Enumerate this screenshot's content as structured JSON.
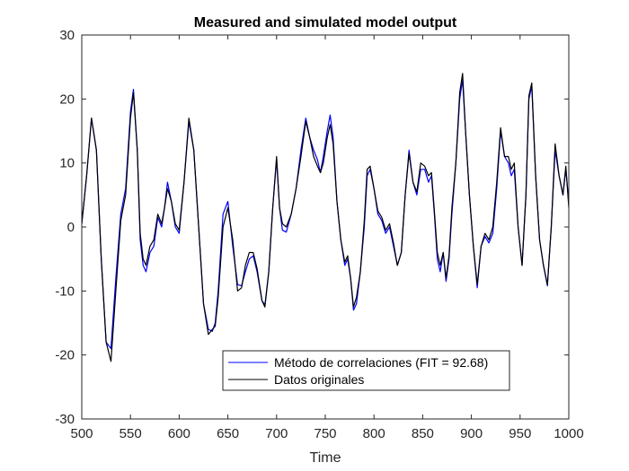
{
  "chart_data": {
    "type": "line",
    "title": "Measured and simulated model output",
    "xlabel": "Time",
    "ylabel": "",
    "xlim": [
      500,
      1000
    ],
    "ylim": [
      -30,
      30
    ],
    "xticks": [
      500,
      550,
      600,
      650,
      700,
      750,
      800,
      850,
      900,
      950,
      1000
    ],
    "yticks": [
      -30,
      -20,
      -10,
      0,
      10,
      20,
      30
    ],
    "grid": false,
    "legend_position": "bottom-center",
    "series": [
      {
        "name": "Método de correlaciones (FIT = 92.68)",
        "color": "#0000ff",
        "points": [
          [
            500,
            0.5
          ],
          [
            505,
            8
          ],
          [
            510,
            17
          ],
          [
            515,
            12
          ],
          [
            520,
            -5
          ],
          [
            525,
            -18
          ],
          [
            530,
            -19
          ],
          [
            535,
            -8
          ],
          [
            540,
            2
          ],
          [
            545,
            6
          ],
          [
            550,
            18
          ],
          [
            553,
            21.5
          ],
          [
            557,
            12
          ],
          [
            560,
            -2
          ],
          [
            563,
            -6
          ],
          [
            566,
            -7
          ],
          [
            570,
            -4
          ],
          [
            574,
            -3
          ],
          [
            578,
            1.5
          ],
          [
            582,
            0
          ],
          [
            585,
            3
          ],
          [
            588,
            7
          ],
          [
            592,
            4
          ],
          [
            596,
            0
          ],
          [
            600,
            -1
          ],
          [
            605,
            7
          ],
          [
            610,
            16.5
          ],
          [
            615,
            12
          ],
          [
            620,
            0
          ],
          [
            625,
            -12
          ],
          [
            630,
            -16
          ],
          [
            634,
            -16.3
          ],
          [
            637,
            -15
          ],
          [
            640,
            -10
          ],
          [
            645,
            2
          ],
          [
            650,
            4
          ],
          [
            655,
            -3
          ],
          [
            660,
            -9
          ],
          [
            664,
            -9.2
          ],
          [
            668,
            -7
          ],
          [
            672,
            -5
          ],
          [
            676,
            -4.5
          ],
          [
            680,
            -7
          ],
          [
            685,
            -11.5
          ],
          [
            688,
            -12.2
          ],
          [
            692,
            -7
          ],
          [
            696,
            3
          ],
          [
            700,
            10.5
          ],
          [
            703,
            3
          ],
          [
            706,
            -0.5
          ],
          [
            710,
            -0.8
          ],
          [
            715,
            2
          ],
          [
            720,
            6
          ],
          [
            725,
            12
          ],
          [
            730,
            17
          ],
          [
            734,
            14
          ],
          [
            738,
            12
          ],
          [
            742,
            10.5
          ],
          [
            745,
            8.5
          ],
          [
            748,
            11
          ],
          [
            752,
            15
          ],
          [
            755,
            17.5
          ],
          [
            758,
            14
          ],
          [
            762,
            4
          ],
          [
            766,
            -2
          ],
          [
            770,
            -6
          ],
          [
            773,
            -5
          ],
          [
            776,
            -8
          ],
          [
            779,
            -13
          ],
          [
            782,
            -12
          ],
          [
            786,
            -7
          ],
          [
            790,
            0
          ],
          [
            793,
            8
          ],
          [
            796,
            9
          ],
          [
            800,
            6
          ],
          [
            804,
            2
          ],
          [
            808,
            1
          ],
          [
            812,
            -1
          ],
          [
            816,
            0
          ],
          [
            820,
            -3
          ],
          [
            824,
            -6
          ],
          [
            828,
            -4
          ],
          [
            832,
            5
          ],
          [
            836,
            12
          ],
          [
            840,
            7
          ],
          [
            844,
            5
          ],
          [
            848,
            9
          ],
          [
            852,
            9
          ],
          [
            856,
            7
          ],
          [
            859,
            8
          ],
          [
            862,
            2
          ],
          [
            865,
            -5
          ],
          [
            868,
            -7
          ],
          [
            871,
            -4
          ],
          [
            874,
            -8.5
          ],
          [
            877,
            -5
          ],
          [
            880,
            2
          ],
          [
            884,
            10
          ],
          [
            888,
            20
          ],
          [
            891,
            23
          ],
          [
            894,
            15
          ],
          [
            898,
            5
          ],
          [
            902,
            -3
          ],
          [
            906,
            -9.5
          ],
          [
            910,
            -3
          ],
          [
            914,
            -1.5
          ],
          [
            918,
            -2.5
          ],
          [
            922,
            -1
          ],
          [
            926,
            6
          ],
          [
            930,
            15
          ],
          [
            934,
            11
          ],
          [
            938,
            10
          ],
          [
            941,
            8
          ],
          [
            944,
            9
          ],
          [
            948,
            0
          ],
          [
            952,
            -6
          ],
          [
            956,
            5
          ],
          [
            959,
            20
          ],
          [
            962,
            22
          ],
          [
            966,
            8
          ],
          [
            970,
            -2
          ],
          [
            974,
            -6
          ],
          [
            978,
            -9.2
          ],
          [
            982,
            0
          ],
          [
            986,
            12
          ],
          [
            990,
            8
          ],
          [
            994,
            5
          ],
          [
            997,
            9
          ],
          [
            1000,
            4
          ]
        ]
      },
      {
        "name": "Datos originales",
        "color": "#000000",
        "points": [
          [
            500,
            0.5
          ],
          [
            505,
            8
          ],
          [
            510,
            17
          ],
          [
            515,
            12
          ],
          [
            520,
            -5
          ],
          [
            525,
            -18
          ],
          [
            530,
            -21
          ],
          [
            535,
            -10
          ],
          [
            540,
            1
          ],
          [
            545,
            5
          ],
          [
            550,
            17
          ],
          [
            553,
            21
          ],
          [
            557,
            12
          ],
          [
            560,
            -1
          ],
          [
            563,
            -5
          ],
          [
            566,
            -6
          ],
          [
            570,
            -3
          ],
          [
            574,
            -2
          ],
          [
            578,
            2
          ],
          [
            582,
            0.5
          ],
          [
            585,
            3
          ],
          [
            588,
            6
          ],
          [
            592,
            4
          ],
          [
            596,
            0.5
          ],
          [
            600,
            -0.5
          ],
          [
            605,
            7
          ],
          [
            610,
            17
          ],
          [
            615,
            12
          ],
          [
            620,
            0
          ],
          [
            625,
            -12
          ],
          [
            630,
            -16.8
          ],
          [
            634,
            -16
          ],
          [
            637,
            -15.5
          ],
          [
            640,
            -11
          ],
          [
            645,
            0
          ],
          [
            650,
            3
          ],
          [
            655,
            -2
          ],
          [
            660,
            -10
          ],
          [
            664,
            -9.5
          ],
          [
            668,
            -6
          ],
          [
            672,
            -4
          ],
          [
            676,
            -4
          ],
          [
            680,
            -6.5
          ],
          [
            685,
            -11.5
          ],
          [
            688,
            -12.5
          ],
          [
            692,
            -7
          ],
          [
            696,
            3
          ],
          [
            700,
            11
          ],
          [
            703,
            3
          ],
          [
            706,
            0.5
          ],
          [
            710,
            0
          ],
          [
            715,
            2
          ],
          [
            720,
            6
          ],
          [
            725,
            11
          ],
          [
            730,
            16.5
          ],
          [
            734,
            14
          ],
          [
            738,
            11
          ],
          [
            742,
            9.5
          ],
          [
            745,
            8.5
          ],
          [
            748,
            10
          ],
          [
            752,
            14
          ],
          [
            755,
            16
          ],
          [
            758,
            13
          ],
          [
            762,
            4
          ],
          [
            766,
            -2
          ],
          [
            770,
            -5.5
          ],
          [
            773,
            -4.5
          ],
          [
            776,
            -8
          ],
          [
            779,
            -12.5
          ],
          [
            782,
            -11
          ],
          [
            786,
            -7
          ],
          [
            790,
            1
          ],
          [
            793,
            9
          ],
          [
            796,
            9.5
          ],
          [
            800,
            6
          ],
          [
            804,
            2.5
          ],
          [
            808,
            1.5
          ],
          [
            812,
            -0.5
          ],
          [
            816,
            0.5
          ],
          [
            820,
            -2.5
          ],
          [
            824,
            -6
          ],
          [
            828,
            -4
          ],
          [
            832,
            5
          ],
          [
            836,
            11.5
          ],
          [
            840,
            7
          ],
          [
            844,
            5.5
          ],
          [
            848,
            10
          ],
          [
            852,
            9.5
          ],
          [
            856,
            8
          ],
          [
            859,
            8.5
          ],
          [
            862,
            2.5
          ],
          [
            865,
            -4
          ],
          [
            868,
            -6
          ],
          [
            871,
            -4
          ],
          [
            874,
            -8
          ],
          [
            877,
            -4.5
          ],
          [
            880,
            3
          ],
          [
            884,
            10
          ],
          [
            888,
            21
          ],
          [
            891,
            24
          ],
          [
            894,
            15
          ],
          [
            898,
            5
          ],
          [
            902,
            -3
          ],
          [
            906,
            -9
          ],
          [
            910,
            -3
          ],
          [
            914,
            -1
          ],
          [
            918,
            -2
          ],
          [
            922,
            0
          ],
          [
            926,
            7
          ],
          [
            930,
            15.5
          ],
          [
            934,
            11
          ],
          [
            938,
            11
          ],
          [
            941,
            9
          ],
          [
            944,
            10
          ],
          [
            948,
            0
          ],
          [
            952,
            -6
          ],
          [
            956,
            5
          ],
          [
            959,
            20.5
          ],
          [
            962,
            22.5
          ],
          [
            966,
            8
          ],
          [
            970,
            -2
          ],
          [
            974,
            -6
          ],
          [
            978,
            -9
          ],
          [
            982,
            0
          ],
          [
            986,
            13
          ],
          [
            990,
            8
          ],
          [
            994,
            5
          ],
          [
            997,
            9.5
          ],
          [
            1000,
            3
          ]
        ]
      }
    ]
  }
}
